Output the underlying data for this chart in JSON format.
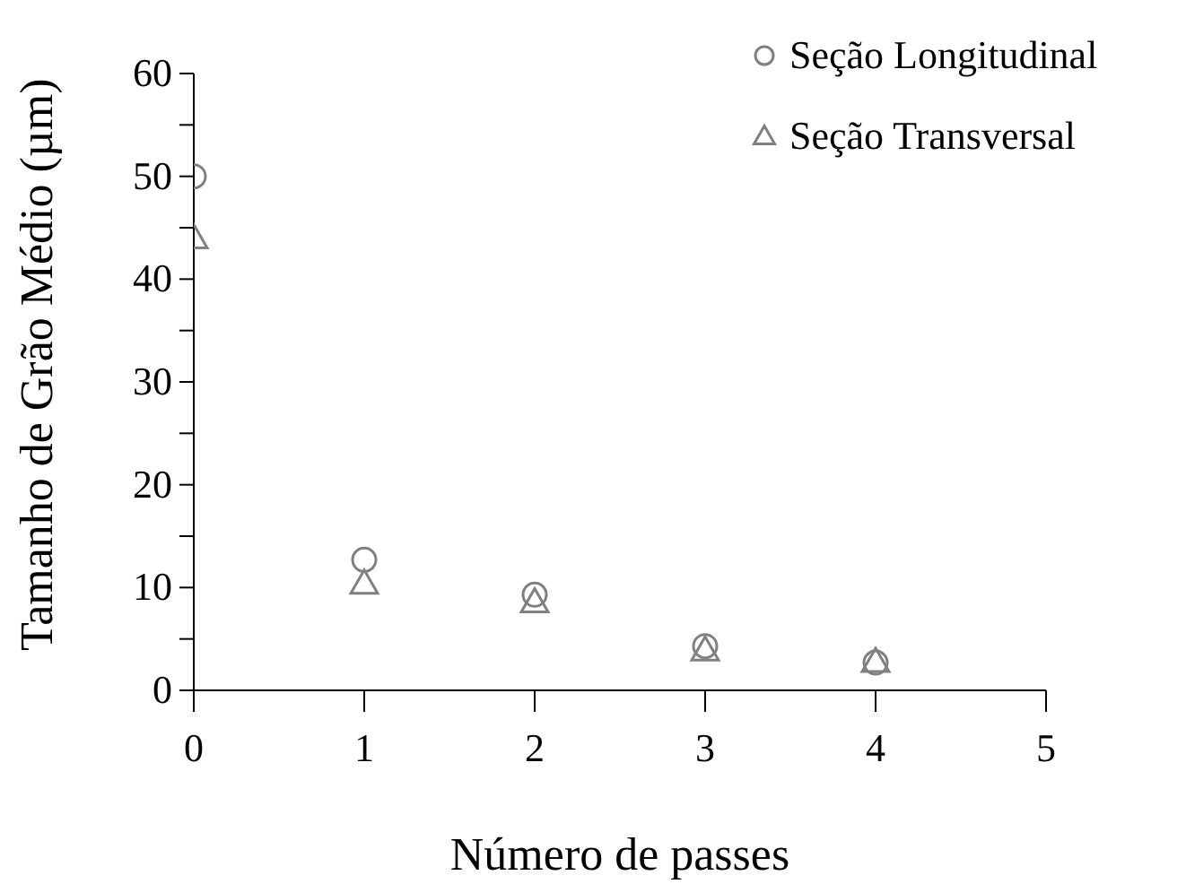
{
  "chart_data": {
    "type": "scatter",
    "xlabel": "Número de passes",
    "ylabel": "Tamanho de Grão Médio (µm)",
    "x": [
      0,
      1,
      2,
      3,
      4
    ],
    "series": [
      {
        "name": "Seção Longitudinal",
        "color": "#808080",
        "marker": "circle",
        "values": [
          50,
          12.7,
          9.3,
          4.3,
          2.7
        ]
      },
      {
        "name": "Seção Transversal",
        "color": "#808080",
        "marker": "triangle",
        "values": [
          44,
          10.4,
          8.6,
          3.9,
          2.8
        ]
      }
    ],
    "xlim": [
      0,
      5
    ],
    "xticks": [
      0,
      1,
      2,
      3,
      4,
      5
    ],
    "ylim": [
      0,
      60
    ],
    "yticks": [
      0,
      {
        "value": 5,
        "label": null
      },
      10,
      {
        "value": 15,
        "label": null
      },
      20,
      {
        "value": 25,
        "label": null
      },
      30,
      {
        "value": 35,
        "label": null
      },
      40,
      {
        "value": 45,
        "label": null
      },
      50,
      {
        "value": 55,
        "label": null
      },
      60
    ],
    "grid": false,
    "legend": "top right"
  }
}
